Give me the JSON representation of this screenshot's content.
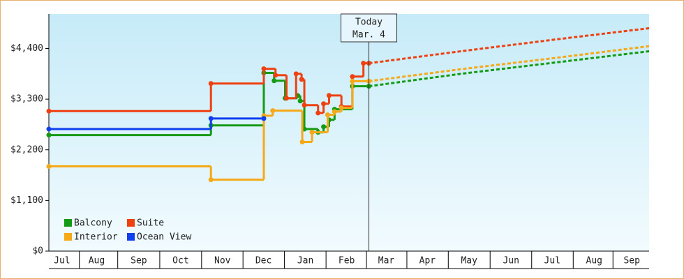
{
  "chart_data": {
    "type": "step-line",
    "xlim": [
      0,
      437
    ],
    "ylim": [
      0,
      5150
    ],
    "yticks": [
      {
        "value": 0,
        "label": "$0"
      },
      {
        "value": 1100,
        "label": "$1,100"
      },
      {
        "value": 2200,
        "label": "$2,200"
      },
      {
        "value": 3300,
        "label": "$3,300"
      },
      {
        "value": 4400,
        "label": "$4,400"
      }
    ],
    "xticks": [
      {
        "value": 9.6,
        "label": "Jul"
      },
      {
        "value": 34.8,
        "label": "Aug"
      },
      {
        "value": 65.5,
        "label": "Sep"
      },
      {
        "value": 96,
        "label": "Oct"
      },
      {
        "value": 126.4,
        "label": "Nov"
      },
      {
        "value": 156.3,
        "label": "Dec"
      },
      {
        "value": 186.8,
        "label": "Jan"
      },
      {
        "value": 216.8,
        "label": "Feb"
      },
      {
        "value": 245.7,
        "label": "Mar"
      },
      {
        "value": 275.6,
        "label": "Apr"
      },
      {
        "value": 306,
        "label": "May"
      },
      {
        "value": 336.5,
        "label": "Jun"
      },
      {
        "value": 366.5,
        "label": "Jul"
      },
      {
        "value": 397,
        "label": "Aug"
      },
      {
        "value": 424.4,
        "label": "Sep"
      }
    ],
    "annotation": {
      "x": 233,
      "lines": [
        "Today",
        "Mar. 4"
      ]
    },
    "legend": "lower left",
    "series": [
      {
        "name": "Balcony",
        "color": "#159a15",
        "x": [
          0,
          118,
          156.5,
          164,
          172,
          181,
          183,
          186,
          196,
          200,
          204,
          208,
          221,
          233
        ],
        "values": [
          2520,
          2730,
          3870,
          3700,
          3320,
          3380,
          3260,
          2650,
          2580,
          2700,
          2850,
          3080,
          3580,
          3580
        ],
        "forecast_x": [
          233,
          300,
          370,
          437
        ],
        "forecast_values": [
          3580,
          3850,
          4100,
          4340
        ]
      },
      {
        "name": "Suite",
        "color": "#ee4010",
        "x": [
          0,
          118,
          156.5,
          165,
          173,
          180,
          184,
          186,
          196,
          200,
          204,
          213,
          221,
          229,
          233
        ],
        "values": [
          3040,
          3640,
          3960,
          3820,
          3320,
          3850,
          3730,
          3170,
          3000,
          3200,
          3380,
          3140,
          3790,
          4080,
          4080
        ],
        "forecast_x": [
          233,
          300,
          370,
          437
        ],
        "forecast_values": [
          4080,
          4340,
          4600,
          4840
        ]
      },
      {
        "name": "Interior",
        "color": "#f5a818",
        "x": [
          0,
          118,
          156.5,
          163,
          184.5,
          191.6,
          203,
          208,
          213,
          221,
          233
        ],
        "values": [
          1840,
          1550,
          2940,
          3050,
          2370,
          2580,
          2960,
          3030,
          3110,
          3690,
          3690
        ],
        "forecast_x": [
          233,
          300,
          370,
          437
        ],
        "forecast_values": [
          3690,
          3950,
          4200,
          4450
        ]
      },
      {
        "name": "Ocean View",
        "color": "#1040ee",
        "x": [
          0,
          118,
          156.5
        ],
        "values": [
          2650,
          2880,
          2880
        ]
      }
    ]
  }
}
